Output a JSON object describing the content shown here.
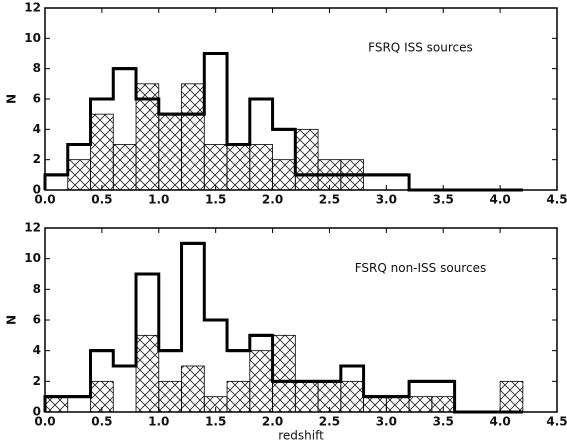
{
  "chart_data": [
    {
      "type": "histogram",
      "annotation": "FSRQ ISS sources",
      "ylabel": "N",
      "bins": [
        0,
        0.2,
        0.4,
        0.6,
        0.8,
        1,
        1.2,
        1.4,
        1.6,
        1.8,
        2,
        2.2,
        2.4,
        2.6,
        2.8,
        3,
        3.2,
        3.4,
        3.6,
        3.8,
        4,
        4.2
      ],
      "series": [
        {
          "style": "step",
          "color": "#000000",
          "values": [
            1,
            3,
            6,
            8,
            6,
            5,
            5,
            9,
            3,
            6,
            4,
            1,
            1,
            1,
            1,
            1,
            0,
            0,
            0,
            0,
            0
          ]
        },
        {
          "style": "hatch",
          "color": "#000000",
          "values": [
            0,
            2,
            5,
            3,
            7,
            5,
            7,
            3,
            3,
            3,
            2,
            4,
            2,
            2,
            0,
            0,
            0,
            0,
            0,
            0,
            0
          ]
        }
      ],
      "xlim": [
        0,
        4.5
      ],
      "ylim": [
        0,
        12
      ],
      "xticks": [
        {
          "value": 0,
          "label": "0.0"
        },
        0.5,
        {
          "value": 1,
          "label": "1.0"
        },
        1.5,
        {
          "value": 2,
          "label": "2.0"
        },
        2.5,
        {
          "value": 3,
          "label": "3.0"
        },
        3.5,
        {
          "value": 4,
          "label": "4.0"
        },
        4.5
      ],
      "yticks": [
        0,
        2,
        4,
        6,
        8,
        10,
        12
      ]
    },
    {
      "type": "histogram",
      "annotation": "FSRQ non-ISS sources",
      "ylabel": "N",
      "xlabel": "redshift",
      "bins": [
        0,
        0.2,
        0.4,
        0.6,
        0.8,
        1,
        1.2,
        1.4,
        1.6,
        1.8,
        2,
        2.2,
        2.4,
        2.6,
        2.8,
        3,
        3.2,
        3.4,
        3.6,
        3.8,
        4,
        4.2
      ],
      "series": [
        {
          "style": "step",
          "color": "#000000",
          "values": [
            1,
            1,
            4,
            3,
            9,
            4,
            11,
            6,
            4,
            5,
            2,
            2,
            2,
            3,
            1,
            1,
            2,
            2,
            0,
            0,
            0
          ]
        },
        {
          "style": "hatch",
          "color": "#000000",
          "values": [
            1,
            0,
            2,
            0,
            5,
            2,
            3,
            1,
            2,
            4,
            5,
            2,
            2,
            2,
            1,
            1,
            1,
            1,
            0,
            0,
            2
          ]
        }
      ],
      "xlim": [
        0,
        4.5
      ],
      "ylim": [
        0,
        12
      ],
      "xticks": [
        {
          "value": 0,
          "label": "0.0"
        },
        0.5,
        {
          "value": 1,
          "label": "1.0"
        },
        1.5,
        {
          "value": 2,
          "label": "2.0"
        },
        2.5,
        {
          "value": 3,
          "label": "3.0"
        },
        3.5,
        {
          "value": 4,
          "label": "4.0"
        },
        4.5
      ],
      "yticks": [
        0,
        2,
        4,
        6,
        8,
        10,
        12
      ]
    }
  ]
}
